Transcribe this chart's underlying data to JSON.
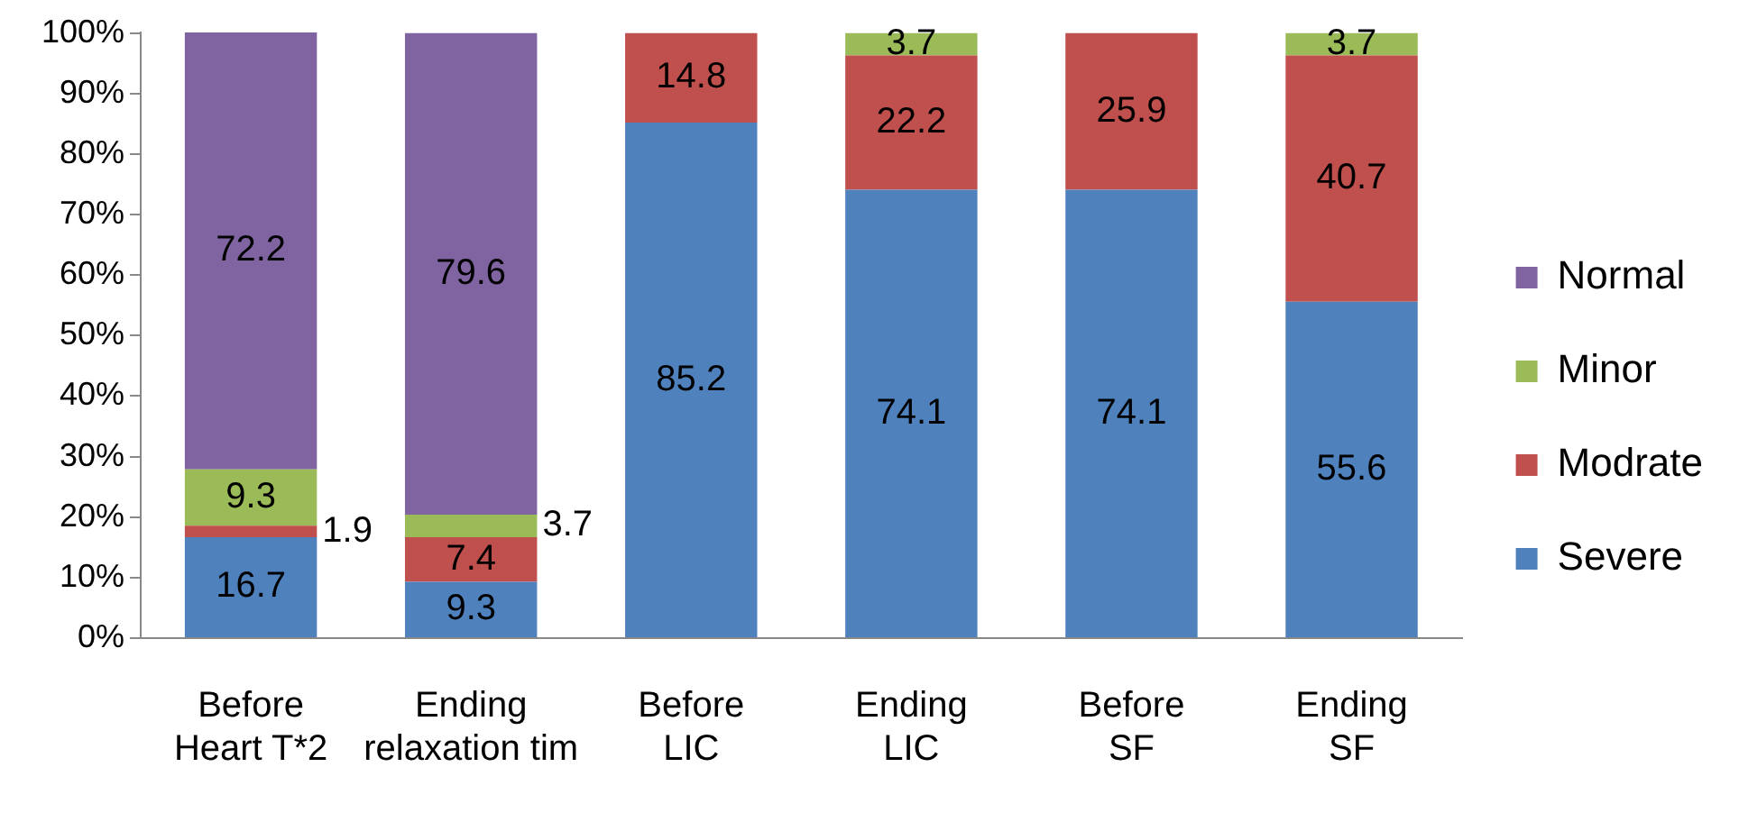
{
  "chart_data": {
    "type": "bar",
    "stacked": true,
    "categories": [
      "Before\nHeart T*2",
      "Ending\nrelaxation tim",
      "Before\nLIC",
      "Ending\nLIC",
      "Before\nSF",
      "Ending\nSF"
    ],
    "series": [
      {
        "name": "Severe",
        "color": "#4f81bd",
        "values": [
          16.7,
          9.3,
          85.2,
          74.1,
          74.1,
          55.6
        ]
      },
      {
        "name": "Modrate",
        "color": "#c0504d",
        "values": [
          1.9,
          7.4,
          14.8,
          22.2,
          25.9,
          40.7
        ]
      },
      {
        "name": "Minor",
        "color": "#9bbb59",
        "values": [
          9.3,
          3.7,
          null,
          3.7,
          null,
          3.7
        ]
      },
      {
        "name": "Normal",
        "color": "#8064a2",
        "values": [
          72.2,
          79.6,
          null,
          null,
          null,
          null
        ]
      }
    ],
    "data_labels": true,
    "ylim": [
      0,
      100.1
    ],
    "yticks": [
      {
        "value": 0,
        "label": "0%"
      },
      {
        "value": 10,
        "label": "10%"
      },
      {
        "value": 20,
        "label": "20%"
      },
      {
        "value": 30,
        "label": "30%"
      },
      {
        "value": 40,
        "label": "40%"
      },
      {
        "value": 50,
        "label": "50%"
      },
      {
        "value": 60,
        "label": "60%"
      },
      {
        "value": 70,
        "label": "70%"
      },
      {
        "value": 80,
        "label": "80%"
      },
      {
        "value": 90,
        "label": "90%"
      },
      {
        "value": 100,
        "label": "100%"
      }
    ],
    "grid": false,
    "legend": "right"
  }
}
